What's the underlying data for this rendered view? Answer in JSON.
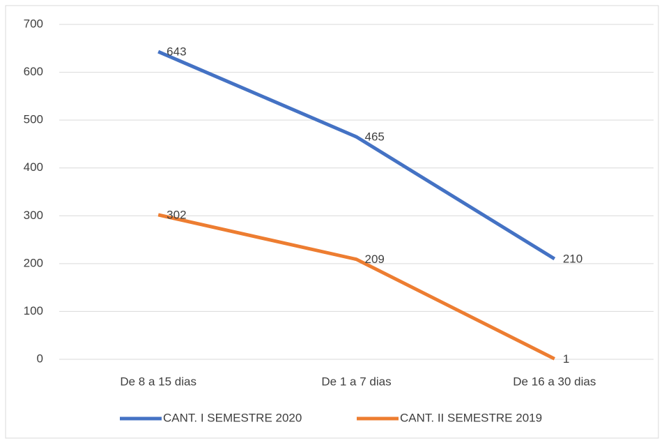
{
  "chart_data": {
    "type": "line",
    "categories": [
      "De 8 a 15 dias",
      "De 1 a 7 dias",
      "De 16 a 30 dias"
    ],
    "series": [
      {
        "name": "CANT. I SEMESTRE 2020",
        "color": "#4472c4",
        "values": [
          643,
          465,
          210
        ]
      },
      {
        "name": "CANT. II SEMESTRE 2019",
        "color": "#ed7d31",
        "values": [
          302,
          209,
          1
        ]
      }
    ],
    "ylim": [
      0,
      700
    ],
    "yticks": [
      0,
      100,
      200,
      300,
      400,
      500,
      600,
      700
    ],
    "grid": true,
    "legend": "bottom"
  }
}
